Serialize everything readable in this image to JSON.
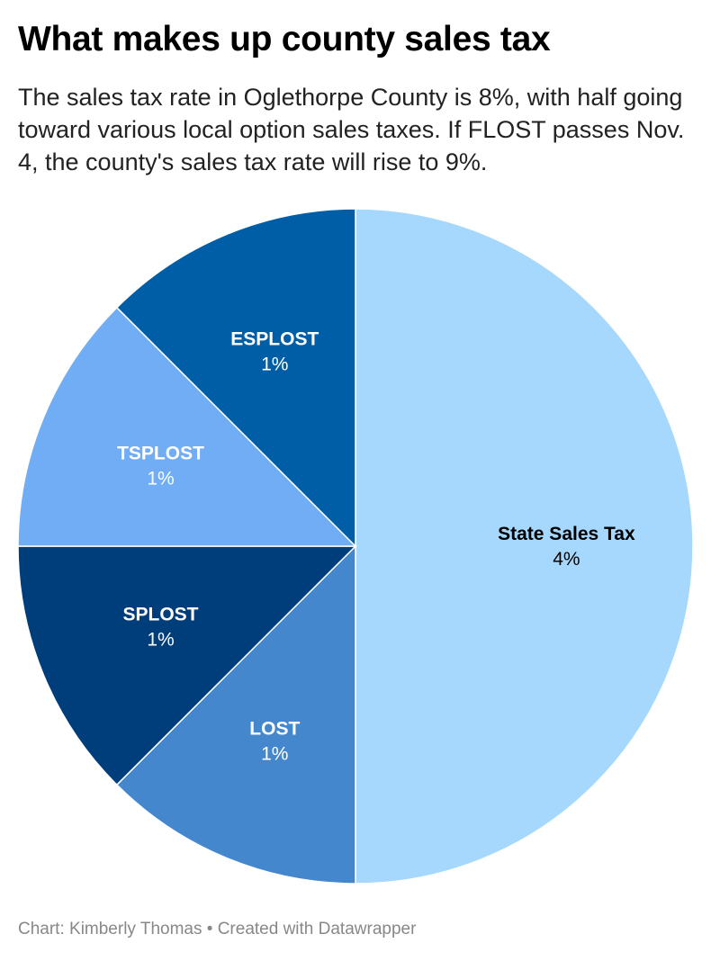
{
  "header": {
    "title": "What makes up county sales tax",
    "subtitle": "The sales tax rate in Oglethorpe County is 8%, with half going toward various local option sales taxes. If FLOST passes Nov. 4, the county's sales tax rate will rise to 9%."
  },
  "footer": {
    "text": "Chart: Kimberly Thomas • Created with Datawrapper"
  },
  "chart_data": {
    "type": "pie",
    "title": "What makes up county sales tax",
    "slices": [
      {
        "label": "State Sales Tax",
        "value": 4,
        "value_label": "4%",
        "color": "#a6d8fd",
        "text_color": "#000000"
      },
      {
        "label": "LOST",
        "value": 1,
        "value_label": "1%",
        "color": "#4487cd",
        "text_color": "#ffffff"
      },
      {
        "label": "SPLOST",
        "value": 1,
        "value_label": "1%",
        "color": "#003d7b",
        "text_color": "#ffffff"
      },
      {
        "label": "TSPLOST",
        "value": 1,
        "value_label": "1%",
        "color": "#70adf4",
        "text_color": "#ffffff"
      },
      {
        "label": "ESPLOST",
        "value": 1,
        "value_label": "1%",
        "color": "#005ea7",
        "text_color": "#ffffff"
      }
    ],
    "start": "top",
    "direction": "clockwise",
    "legend": "none"
  }
}
